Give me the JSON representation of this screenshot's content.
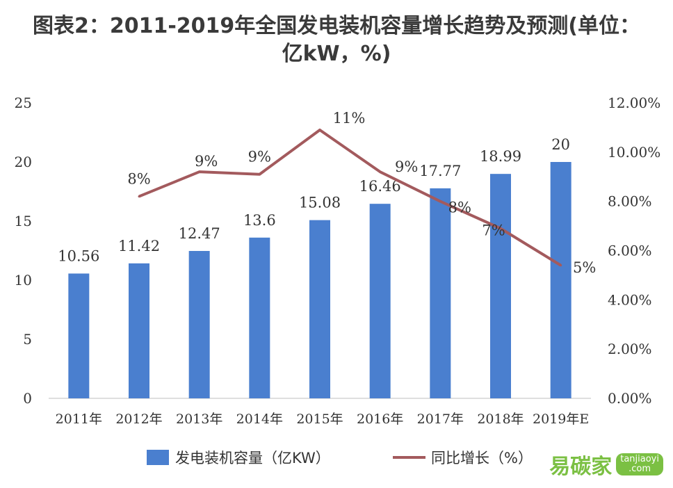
{
  "title_line1": "图表2：2011-2019年全国发电装机容量增长趋势及预测(单位：",
  "title_line2": "亿kW，%)",
  "logo": {
    "text": "易碳家",
    "domain": "tanjiaoyi",
    "tld": ".com"
  },
  "colors": {
    "bar": "#4a7fcf",
    "line": "#a35a5d"
  },
  "chart_data": {
    "type": "bar",
    "categories": [
      "2011年",
      "2012年",
      "2013年",
      "2014年",
      "2015年",
      "2016年",
      "2017年",
      "2018年",
      "2019年E"
    ],
    "series": [
      {
        "name": "发电装机容量（亿KW）",
        "type": "bar",
        "axis": "left",
        "values": [
          10.56,
          11.42,
          12.47,
          13.6,
          15.08,
          16.46,
          17.77,
          18.99,
          20
        ],
        "labels": [
          "10.56",
          "11.42",
          "12.47",
          "13.6",
          "15.08",
          "16.46",
          "17.77",
          "18.99",
          "20"
        ]
      },
      {
        "name": "同比增长（%）",
        "type": "line",
        "axis": "right",
        "values": [
          null,
          8.2,
          9.2,
          9.1,
          10.9,
          9.2,
          8.0,
          6.9,
          5.4
        ],
        "labels": [
          "",
          "8%",
          "9%",
          "9%",
          "11%",
          "9%",
          "8%",
          "7%",
          "5%"
        ]
      }
    ],
    "y_left": {
      "min": 0,
      "max": 25,
      "ticks": [
        "0",
        "5",
        "10",
        "15",
        "20",
        "25"
      ]
    },
    "y_right": {
      "min": 0,
      "max": 12,
      "ticks": [
        "0.00%",
        "2.00%",
        "4.00%",
        "6.00%",
        "8.00%",
        "10.00%",
        "12.00%"
      ]
    },
    "grid": false,
    "legend": "bottom"
  }
}
